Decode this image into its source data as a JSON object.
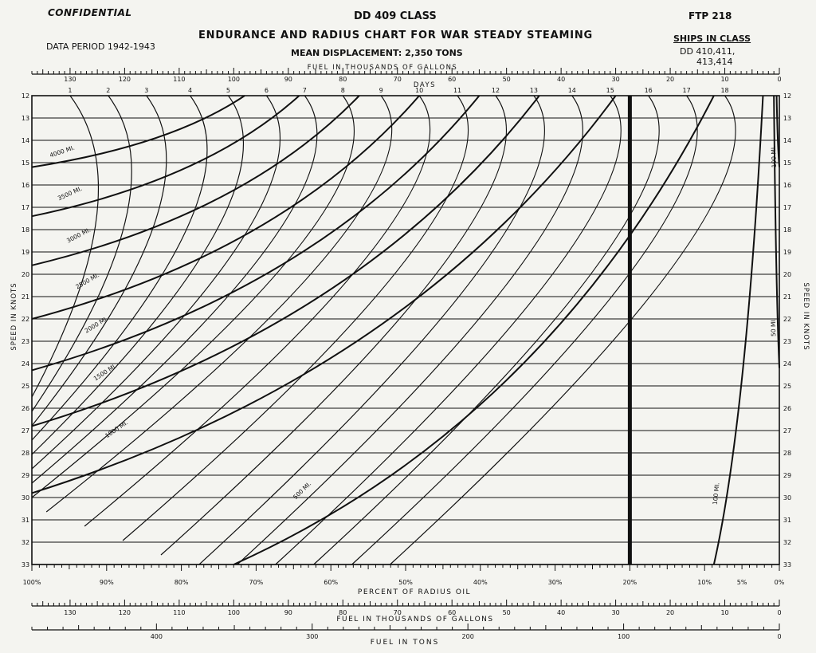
{
  "header": {
    "confidential": "CONFIDENTIAL",
    "class": "DD 409 CLASS",
    "code": "FTP 218",
    "title": "ENDURANCE AND RADIUS CHART FOR WAR STEADY STEAMING",
    "period": "DATA PERIOD 1942-1943",
    "displacement": "MEAN DISPLACEMENT: 2,350 TONS",
    "ships_title": "SHIPS IN CLASS",
    "ships_line1": "DD 410,411,",
    "ships_line2": "413,414"
  },
  "chart_data": {
    "type": "line",
    "y_axis": {
      "label": "SPEED IN KNOTS",
      "range": [
        12,
        33
      ],
      "ticks": [
        12,
        13,
        14,
        15,
        16,
        17,
        18,
        19,
        20,
        21,
        22,
        23,
        24,
        25,
        26,
        27,
        28,
        29,
        30,
        31,
        32,
        33
      ],
      "direction": "downward",
      "grid": true
    },
    "top_axes": {
      "fuel_gallons": {
        "label": "FUEL IN THOUSANDS OF GALLONS",
        "range": [
          0,
          137
        ],
        "ticks": [
          130,
          120,
          110,
          100,
          90,
          80,
          70,
          60,
          50,
          40,
          30,
          20,
          10,
          0
        ],
        "direction": "right-to-left"
      },
      "days": {
        "label": "DAYS",
        "ticks": [
          1,
          2,
          3,
          4,
          5,
          6,
          7,
          8,
          9,
          10,
          11,
          12,
          13,
          14,
          15,
          16,
          17,
          18
        ]
      }
    },
    "bottom_axes": {
      "percent_radius_oil": {
        "label": "PERCENT OF RADIUS OIL",
        "ticks": [
          "100%",
          "90%",
          "80%",
          "70%",
          "60%",
          "50%",
          "40%",
          "30%",
          "20%",
          "10%",
          "5%",
          "0%"
        ],
        "values": [
          100,
          90,
          80,
          70,
          60,
          50,
          40,
          30,
          20,
          10,
          5,
          0
        ]
      },
      "fuel_gallons": {
        "label": "FUEL IN THOUSANDS OF GALLONS",
        "range": [
          0,
          137
        ],
        "ticks": [
          130,
          120,
          110,
          100,
          90,
          80,
          70,
          60,
          50,
          40,
          30,
          20,
          10,
          0
        ]
      },
      "fuel_tons": {
        "label": "FUEL IN TONS",
        "range": [
          0,
          480
        ],
        "ticks": [
          400,
          300,
          200,
          100,
          0
        ]
      }
    },
    "reference_line_percent_radius_oil": 20,
    "day_curves": [
      {
        "day": 1,
        "x_fuel_at_12kn": 130,
        "x_fuel_at_33kn": null
      },
      {
        "day": 2,
        "x_fuel_at_12kn": 123,
        "x_fuel_at_33kn": null
      },
      {
        "day": 3,
        "x_fuel_at_12kn": 116,
        "x_fuel_at_33kn": null
      },
      {
        "day": 4,
        "x_fuel_at_12kn": 108,
        "x_fuel_at_33kn": null
      },
      {
        "day": 5,
        "x_fuel_at_12kn": 101,
        "x_fuel_at_33kn": null
      },
      {
        "day": 6,
        "x_fuel_at_12kn": 94,
        "x_fuel_at_33kn": null
      },
      {
        "day": 7,
        "x_fuel_at_12kn": 87,
        "x_fuel_at_33kn": null
      },
      {
        "day": 8,
        "x_fuel_at_12kn": 80,
        "x_fuel_at_33kn": null
      },
      {
        "day": 9,
        "x_fuel_at_12kn": 73,
        "x_fuel_at_33kn": null
      },
      {
        "day": 10,
        "x_fuel_at_12kn": 66,
        "x_fuel_at_33kn": null
      },
      {
        "day": 11,
        "x_fuel_at_12kn": 59,
        "x_fuel_at_33kn": null
      },
      {
        "day": 12,
        "x_fuel_at_12kn": 52,
        "x_fuel_at_33kn": null
      },
      {
        "day": 13,
        "x_fuel_at_12kn": 45,
        "x_fuel_at_33kn": null
      },
      {
        "day": 14,
        "x_fuel_at_12kn": 38,
        "x_fuel_at_33kn": null
      },
      {
        "day": 15,
        "x_fuel_at_12kn": 31,
        "x_fuel_at_33kn": null
      },
      {
        "day": 16,
        "x_fuel_at_12kn": 24,
        "x_fuel_at_33kn": null
      },
      {
        "day": 17,
        "x_fuel_at_12kn": 17,
        "x_fuel_at_33kn": null
      },
      {
        "day": 18,
        "x_fuel_at_12kn": 10,
        "x_fuel_at_33kn": null
      }
    ],
    "radius_curves": [
      {
        "label": "4000 MI.",
        "x_fuel": 137,
        "speed_start": 15.2,
        "x_fuel_end": 98,
        "speed_end": 12
      },
      {
        "label": "3500 MI.",
        "x_fuel": 137,
        "speed_start": 17.4,
        "x_fuel_end": 88,
        "speed_end": 12
      },
      {
        "label": "3000 MI.",
        "x_fuel": 137,
        "speed_start": 19.6,
        "x_fuel_end": 77,
        "speed_end": 12
      },
      {
        "label": "2500 MI.",
        "x_fuel": 137,
        "speed_start": 22.0,
        "x_fuel_end": 66,
        "speed_end": 12
      },
      {
        "label": "2000 MI.",
        "x_fuel": 137,
        "speed_start": 24.3,
        "x_fuel_end": 55,
        "speed_end": 12
      },
      {
        "label": "1500 MI.",
        "x_fuel": 137,
        "speed_start": 26.8,
        "x_fuel_end": 44,
        "speed_end": 12
      },
      {
        "label": "1000 MI.",
        "x_fuel": 137,
        "speed_start": 29.8,
        "x_fuel_end": 30,
        "speed_end": 12
      },
      {
        "label": "500 MI.",
        "x_fuel": 100,
        "speed_start": 33,
        "x_fuel_end": 12,
        "speed_end": 12
      },
      {
        "label": "100 MI.",
        "x_fuel": 12,
        "speed_start": 33,
        "x_fuel_end": 3,
        "speed_end": 12
      },
      {
        "label": "50 MI.",
        "x_fuel": 0,
        "speed_start": 24.2,
        "x_fuel_end": 1,
        "speed_end": 12
      },
      {
        "label": "100 MI.",
        "x_fuel": 0,
        "speed_start": 15.2,
        "x_fuel_end": 0.5,
        "speed_end": 12
      }
    ]
  }
}
